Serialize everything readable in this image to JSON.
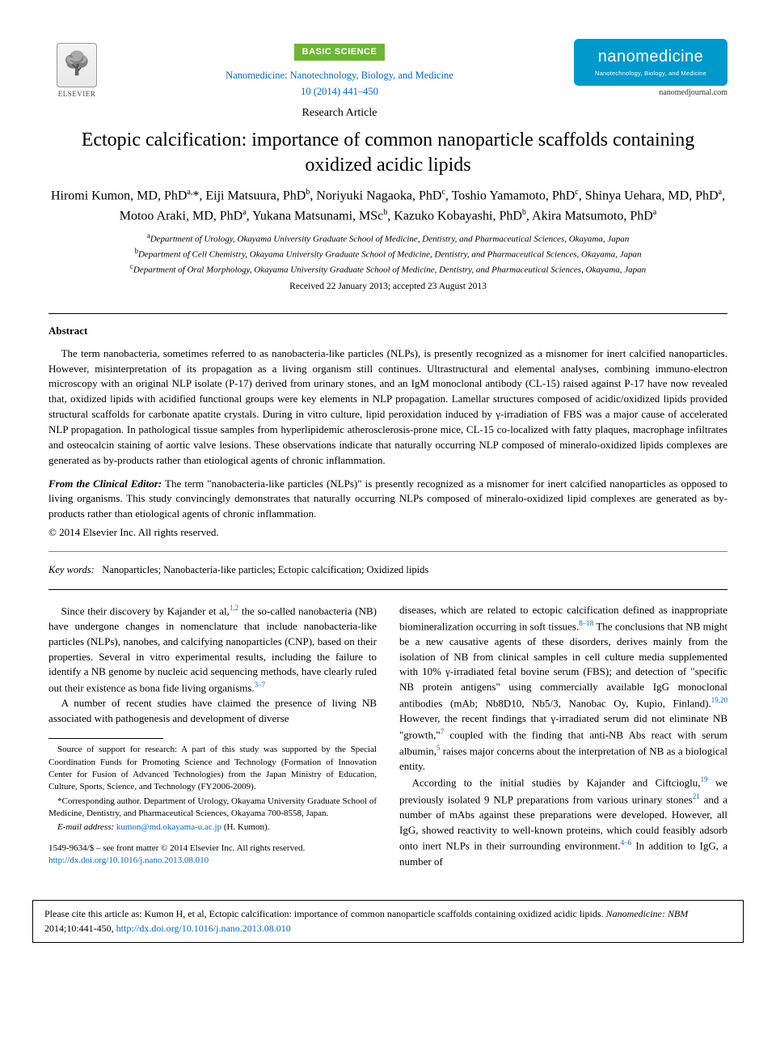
{
  "header": {
    "publisher_name": "ELSEVIER",
    "badge": "BASIC SCIENCE",
    "journal_line1": "Nanomedicine: Nanotechnology, Biology, and Medicine",
    "journal_line2": "10 (2014) 441–450",
    "article_type": "Research Article",
    "brand_main": "nanomedicine",
    "brand_sub": "Nanotechnology, Biology, and Medicine",
    "journal_url": "nanomedjournal.com"
  },
  "title": "Ectopic calcification: importance of common nanoparticle scaffolds containing oxidized acidic lipids",
  "authors_html": "Hiromi Kumon, MD, PhD<sup>a,</sup>*, Eiji Matsuura, PhD<sup>b</sup>, Noriyuki Nagaoka, PhD<sup>c</sup>, Toshio Yamamoto, PhD<sup>c</sup>, Shinya Uehara, MD, PhD<sup>a</sup>, Motoo Araki, MD, PhD<sup>a</sup>, Yukana Matsunami, MSc<sup>b</sup>, Kazuko Kobayashi, PhD<sup>b</sup>, Akira Matsumoto, PhD<sup>a</sup>",
  "affiliations": {
    "a": "Department of Urology, Okayama University Graduate School of Medicine, Dentistry, and Pharmaceutical Sciences, Okayama, Japan",
    "b": "Department of Cell Chemistry, Okayama University Graduate School of Medicine, Dentistry, and Pharmaceutical Sciences, Okayama, Japan",
    "c": "Department of Oral Morphology, Okayama University Graduate School of Medicine, Dentistry, and Pharmaceutical Sciences, Okayama, Japan"
  },
  "dates": "Received 22 January 2013; accepted 23 August 2013",
  "abstract": {
    "heading": "Abstract",
    "body": "The term nanobacteria, sometimes referred to as nanobacteria-like particles (NLPs), is presently recognized as a misnomer for inert calcified nanoparticles. However, misinterpretation of its propagation as a living organism still continues. Ultrastructural and elemental analyses, combining immuno-electron microscopy with an original NLP isolate (P-17) derived from urinary stones, and an IgM monoclonal antibody (CL-15) raised against P-17 have now revealed that, oxidized lipids with acidified functional groups were key elements in NLP propagation. Lamellar structures composed of acidic/oxidized lipids provided structural scaffolds for carbonate apatite crystals. During in vitro culture, lipid peroxidation induced by γ-irradiation of FBS was a major cause of accelerated NLP propagation. In pathological tissue samples from hyperlipidemic atherosclerosis-prone mice, CL-15 co-localized with fatty plaques, macrophage infiltrates and osteocalcin staining of aortic valve lesions. These observations indicate that naturally occurring NLP composed of mineralo-oxidized lipids complexes are generated as by-products rather than etiological agents of chronic inflammation.",
    "clinical_lead": "From the Clinical Editor:",
    "clinical_body": " The term \"nanobacteria-like particles (NLPs)\" is presently recognized as a misnomer for inert calcified nanoparticles as opposed to living organisms. This study convincingly demonstrates that naturally occurring NLPs composed of mineralo-oxidized lipid complexes are generated as by-products rather than etiological agents of chronic inflammation.",
    "copyright": "© 2014 Elsevier Inc. All rights reserved."
  },
  "keywords": {
    "label": "Key words:",
    "list": "Nanoparticles; Nanobacteria-like particles; Ectopic calcification; Oxidized lipids"
  },
  "body": {
    "left": {
      "p1_pre": "Since their discovery by Kajander et al,",
      "p1_ref1": "1,2",
      "p1_mid": " the so-called nanobacteria (NB) have undergone changes in nomenclature that include nanobacteria-like particles (NLPs), nanobes, and calcifying nanoparticles (CNP), based on their properties. Several in vitro experimental results, including the failure to identify a NB genome by nucleic acid sequencing methods, have clearly ruled out their existence as bona fide living organisms.",
      "p1_ref2": "3–7",
      "p2": "A number of recent studies have claimed the presence of living NB associated with pathogenesis and development of diverse"
    },
    "right": {
      "p1_pre": "diseases, which are related to ectopic calcification defined as inappropriate biomineralization occurring in soft tissues.",
      "p1_ref1": "8–18",
      "p1_mid1": " The conclusions that NB might be a new causative agents of these disorders, derives mainly from the isolation of NB from clinical samples in cell culture media supplemented with 10% γ-irradiated fetal bovine serum (FBS); and detection of \"specific NB protein antigens\" using commercially available IgG monoclonal antibodies (mAb; Nb8D10, Nb5/3, Nanobac Oy, Kupio, Finland).",
      "p1_ref2": "19,20",
      "p1_mid2": " However, the recent findings that γ-irradiated serum did not eliminate NB \"growth,\"",
      "p1_ref3": "7",
      "p1_mid3": " coupled with the finding that anti-NB Abs react with serum albumin,",
      "p1_ref4": "5",
      "p1_end": " raises major concerns about the interpretation of NB as a biological entity.",
      "p2_pre": "According to the initial studies by Kajander and Ciftcioglu,",
      "p2_ref1": "19",
      "p2_mid1": " we previously isolated 9 NLP preparations from various urinary stones",
      "p2_ref2": "21",
      "p2_mid2": " and a number of mAbs against these preparations were developed. However, all IgG, showed reactivity to well-known proteins, which could feasibly adsorb onto inert NLPs in their surrounding environment.",
      "p2_ref3": "4–6",
      "p2_end": " In addition to IgG, a number of"
    }
  },
  "footnotes": {
    "funding": "Source of support for research: A part of this study was supported by the Special Coordination Funds for Promoting Science and Technology (Formation of Innovation Center for Fusion of Advanced Technologies) from the Japan Ministry of Education, Culture, Sports, Science, and Technology (FY2006-2009).",
    "corresponding": "*Corresponding author. Department of Urology, Okayama University Graduate School of Medicine, Dentistry, and Pharmaceutical Sciences, Okayama 700-8558, Japan.",
    "email_label": "E-mail address:",
    "email": "kumon@md.okayama-u.ac.jp",
    "email_paren": "(H. Kumon)."
  },
  "front_matter": {
    "line1": "1549-9634/$ – see front matter © 2014 Elsevier Inc. All rights reserved.",
    "doi": "http://dx.doi.org/10.1016/j.nano.2013.08.010"
  },
  "cite_box": {
    "text_pre": "Please cite this article as: Kumon H, et al, Ectopic calcification: importance of common nanoparticle scaffolds containing oxidized acidic lipids. ",
    "text_ital": "Nanomedicine: NBM",
    "text_post": " 2014;10:441-450, ",
    "doi": "http://dx.doi.org/10.1016/j.nano.2013.08.010"
  },
  "colors": {
    "link": "#0066cc",
    "badge_bg": "#6fb536",
    "brand_bg": "#0099cc",
    "text": "#000000"
  }
}
